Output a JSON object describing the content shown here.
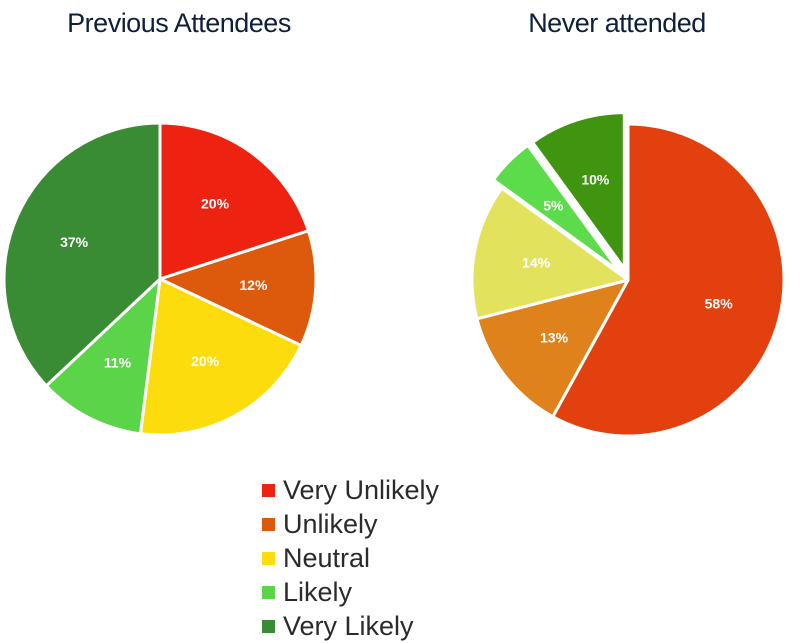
{
  "chart_data": [
    {
      "type": "pie",
      "title": "Previous Attendees",
      "categories": [
        "Very Unlikely",
        "Unlikely",
        "Neutral",
        "Likely",
        "Very Likely"
      ],
      "values": [
        20,
        12,
        20,
        11,
        37
      ],
      "labels": [
        "20%",
        "12%",
        "20%",
        "11%",
        "37%"
      ],
      "colors": [
        "#ee2211",
        "#dd5a0c",
        "#fddc0e",
        "#5cd44a",
        "#3a8c34"
      ],
      "exploded": [
        false,
        false,
        false,
        false,
        false
      ]
    },
    {
      "type": "pie",
      "title": "Never attended",
      "categories": [
        "Very Unlikely",
        "Unlikely",
        "Neutral",
        "Likely",
        "Very Likely"
      ],
      "values": [
        58,
        13,
        14,
        5,
        10
      ],
      "labels": [
        "58%",
        "13%",
        "14%",
        "5%",
        "10%"
      ],
      "colors": [
        "#e2400e",
        "#e0821b",
        "#e2e25c",
        "#5cdb4b",
        "#3f950f"
      ],
      "exploded": [
        false,
        false,
        false,
        true,
        true
      ]
    }
  ],
  "legend": {
    "items": [
      {
        "label": "Very Unlikely",
        "color": "#ee2211"
      },
      {
        "label": "Unlikely",
        "color": "#dd5a0c"
      },
      {
        "label": "Neutral",
        "color": "#fddc0e"
      },
      {
        "label": "Likely",
        "color": "#5cd44a"
      },
      {
        "label": "Very Likely",
        "color": "#3a8c34"
      }
    ],
    "placement": "bottom-center"
  }
}
